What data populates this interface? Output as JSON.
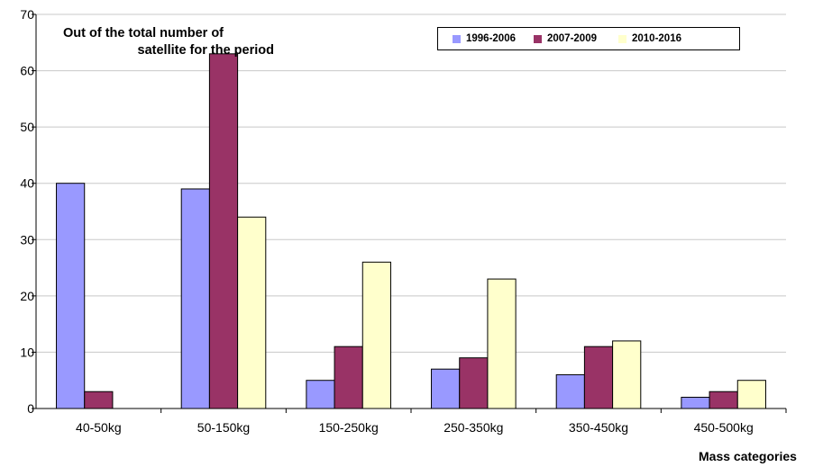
{
  "chart_data": {
    "type": "bar",
    "title_lines": [
      "Out of the total number of",
      "satellite for the period"
    ],
    "xlabel": "Mass categories",
    "ylabel": "",
    "ylim": [
      0,
      70
    ],
    "yticks": [
      0,
      10,
      20,
      30,
      40,
      50,
      60,
      70
    ],
    "grid": true,
    "legend_position": "top-right",
    "categories": [
      "40-50kg",
      "50-150kg",
      "150-250kg",
      "250-350kg",
      "350-450kg",
      "450-500kg"
    ],
    "series": [
      {
        "name": "1996-2006",
        "color": "#9999FF",
        "values": [
          40,
          39,
          5,
          7,
          6,
          2
        ]
      },
      {
        "name": "2007-2009",
        "color": "#993366",
        "values": [
          3,
          63,
          11,
          9,
          11,
          3
        ]
      },
      {
        "name": "2010-2016",
        "color": "#FFFFCC",
        "values": [
          0,
          34,
          26,
          23,
          12,
          5
        ]
      }
    ]
  }
}
